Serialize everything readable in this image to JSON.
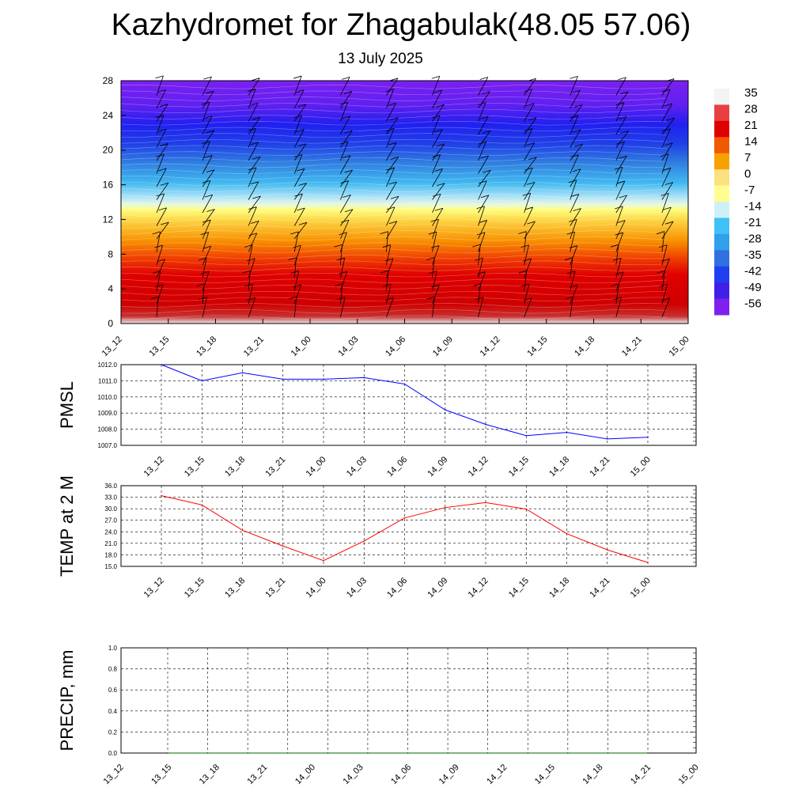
{
  "title": "Kazhydromet for Zhagabulak(48.05 57.06)",
  "subtitle": "13 July 2025",
  "colorbar": {
    "labels": [
      "35",
      "28",
      "21",
      "14",
      "7",
      "0",
      "-7",
      "-14",
      "-21",
      "-28",
      "-35",
      "-42",
      "-49",
      "-56"
    ],
    "colors": [
      "#f4f4f4",
      "#e84040",
      "#e00000",
      "#f05a00",
      "#f8a000",
      "#fde080",
      "#fefe90",
      "#d0f0f8",
      "#40c0f8",
      "#30a0e8",
      "#3070e0",
      "#2040f0",
      "#4020e8",
      "#8020f0"
    ]
  },
  "chart_data": [
    {
      "type": "heatmap",
      "description_fields": "temperature cross-section with wind barbs",
      "x": [
        "13_12",
        "13_15",
        "13_18",
        "13_21",
        "14_00",
        "14_03",
        "14_06",
        "14_09",
        "14_12",
        "14_15",
        "14_18",
        "14_21",
        "15_00"
      ],
      "yticks": [
        "0",
        "4",
        "8",
        "12",
        "16",
        "20",
        "24",
        "28"
      ],
      "ylim": [
        0,
        28
      ],
      "colorbar_range": [
        -56,
        35
      ]
    },
    {
      "type": "line",
      "ylabel": "PMSL",
      "categories": [
        "13_12",
        "13_15",
        "13_18",
        "13_21",
        "14_00",
        "14_03",
        "14_06",
        "14_09",
        "14_12",
        "14_15",
        "14_18",
        "14_21",
        "15_00"
      ],
      "values": [
        1012.0,
        1011.0,
        1011.5,
        1011.1,
        1011.1,
        1011.2,
        1010.8,
        1009.2,
        1008.3,
        1007.6,
        1007.8,
        1007.4,
        1007.5
      ],
      "ylim": [
        1007.0,
        1012.0
      ],
      "yticks": [
        "1012.0",
        "1011.0",
        "1010.0",
        "1009.0",
        "1008.0",
        "1007.0"
      ],
      "color": "#0000ff",
      "grid": true
    },
    {
      "type": "line",
      "ylabel": "TEMP at 2 M",
      "categories": [
        "13_12",
        "13_15",
        "13_18",
        "13_21",
        "14_00",
        "14_03",
        "14_06",
        "14_09",
        "14_12",
        "14_15",
        "14_18",
        "14_21",
        "15_00"
      ],
      "values": [
        33.4,
        31.0,
        24.4,
        20.3,
        16.5,
        21.6,
        27.6,
        30.3,
        31.6,
        29.9,
        23.5,
        19.3,
        16.0
      ],
      "ylim": [
        15.0,
        36.0
      ],
      "yticks": [
        "36.0",
        "33.0",
        "30.0",
        "27.0",
        "24.0",
        "21.0",
        "18.0",
        "15.0"
      ],
      "color": "#ff0000",
      "grid": true
    },
    {
      "type": "line",
      "ylabel": "PRECIP, mm",
      "categories": [
        "13_12",
        "13_15",
        "13_18",
        "13_21",
        "14_00",
        "14_03",
        "14_06",
        "14_09",
        "14_12",
        "14_15",
        "14_18",
        "14_21",
        "15_00"
      ],
      "values": [
        0,
        0,
        0,
        0,
        0,
        0,
        0,
        0,
        0,
        0,
        0,
        0,
        0
      ],
      "ylim": [
        0.0,
        1.0
      ],
      "yticks": [
        "1.0",
        "0.8",
        "0.6",
        "0.4",
        "0.2",
        "0.0"
      ],
      "color": "#006400",
      "grid": true
    }
  ]
}
